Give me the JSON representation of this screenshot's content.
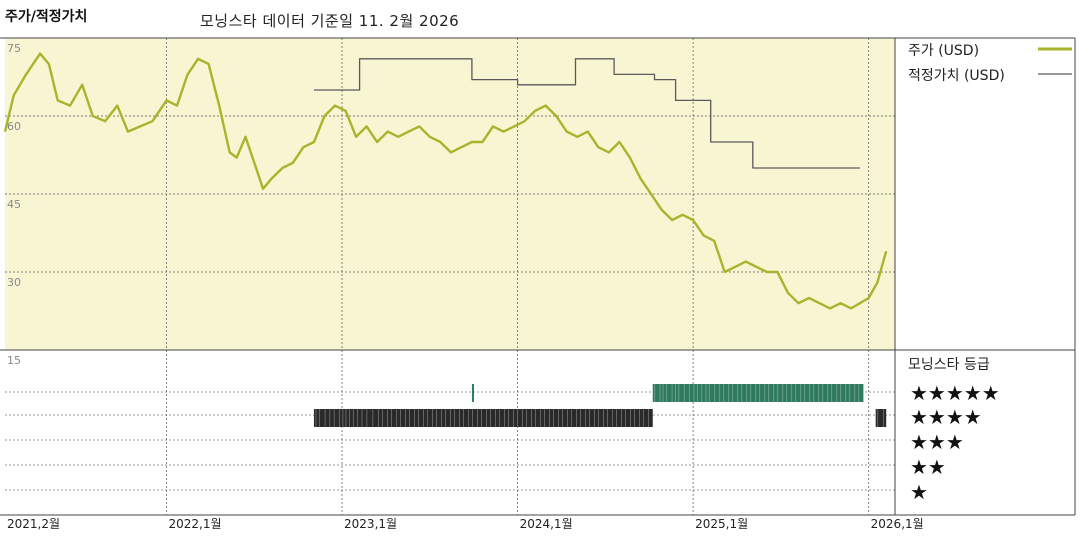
{
  "chart_data": {
    "type": "line",
    "title": "주가/적정가치",
    "subtitle": "모닝스타 데이터 기준일 11. 2월 2026",
    "y_ticks": [
      75,
      60,
      45,
      30,
      15
    ],
    "ylim": [
      15,
      75
    ],
    "x_ticks": [
      "2021,2월",
      "2022,1월",
      "2023,1월",
      "2024,1월",
      "2025,1월",
      "2026,1월"
    ],
    "x_tick_dates": [
      2021.08,
      2022.0,
      2023.0,
      2024.0,
      2025.0,
      2026.0
    ],
    "xlim": [
      2021.08,
      2026.15
    ],
    "legend": {
      "price_label": "주가 (USD)",
      "fair_label": "적정가치 (USD)",
      "rating_label": "모닝스타 등급"
    },
    "colors": {
      "price": "#a9b42c",
      "fair": "#5a5a5a",
      "plot_bg": "#f8f5d3",
      "rating_green": "#2f7a5c",
      "rating_dark": "#2a2a2a"
    },
    "series": [
      {
        "key": "price",
        "name": "주가 (USD)",
        "x": [
          2021.08,
          2021.13,
          2021.2,
          2021.28,
          2021.33,
          2021.38,
          2021.45,
          2021.52,
          2021.58,
          2021.65,
          2021.72,
          2021.78,
          2021.85,
          2021.92,
          2022.0,
          2022.06,
          2022.12,
          2022.18,
          2022.24,
          2022.3,
          2022.36,
          2022.4,
          2022.45,
          2022.5,
          2022.55,
          2022.6,
          2022.66,
          2022.72,
          2022.78,
          2022.84,
          2022.9,
          2022.96,
          2023.02,
          2023.08,
          2023.14,
          2023.2,
          2023.26,
          2023.32,
          2023.38,
          2023.44,
          2023.5,
          2023.56,
          2023.62,
          2023.68,
          2023.74,
          2023.8,
          2023.86,
          2023.92,
          2023.98,
          2024.04,
          2024.1,
          2024.16,
          2024.22,
          2024.28,
          2024.34,
          2024.4,
          2024.46,
          2024.52,
          2024.58,
          2024.64,
          2024.7,
          2024.76,
          2024.82,
          2024.88,
          2024.94,
          2025.0,
          2025.06,
          2025.12,
          2025.18,
          2025.24,
          2025.3,
          2025.36,
          2025.42,
          2025.48,
          2025.54,
          2025.6,
          2025.66,
          2025.72,
          2025.78,
          2025.84,
          2025.9,
          2025.95,
          2026.0,
          2026.05,
          2026.1
        ],
        "values": [
          57,
          64,
          68,
          72,
          70,
          63,
          62,
          66,
          60,
          59,
          62,
          57,
          58,
          59,
          63,
          62,
          68,
          71,
          70,
          62,
          53,
          52,
          56,
          51,
          46,
          48,
          50,
          51,
          54,
          55,
          60,
          62,
          61,
          56,
          58,
          55,
          57,
          56,
          57,
          58,
          56,
          55,
          53,
          54,
          55,
          55,
          58,
          57,
          58,
          59,
          61,
          62,
          60,
          57,
          56,
          57,
          54,
          53,
          55,
          52,
          48,
          45,
          42,
          40,
          41,
          40,
          37,
          36,
          30,
          31,
          32,
          31,
          30,
          30,
          26,
          24,
          25,
          24,
          23,
          24,
          23,
          24,
          25,
          28,
          34
        ]
      },
      {
        "key": "fair",
        "name": "적정가치 (USD)",
        "x": [
          2022.84,
          2023.1,
          2023.1,
          2023.74,
          2023.74,
          2024.0,
          2024.0,
          2024.33,
          2024.33,
          2024.55,
          2024.55,
          2024.78,
          2024.78,
          2024.9,
          2024.9,
          2025.1,
          2025.1,
          2025.34,
          2025.34,
          2025.95
        ],
        "values": [
          65,
          65,
          71,
          71,
          67,
          67,
          66,
          66,
          71,
          71,
          68,
          68,
          67,
          67,
          63,
          63,
          55,
          55,
          50,
          50
        ]
      }
    ],
    "rating_rows": [
      "★★★★★",
      "★★★★",
      "★★★",
      "★★",
      "★"
    ],
    "ratings": [
      {
        "level": 5,
        "from": 2023.74,
        "to": 2023.75,
        "color": "rating_green"
      },
      {
        "level": 5,
        "from": 2024.77,
        "to": 2025.97,
        "color": "rating_green"
      },
      {
        "level": 4,
        "from": 2022.84,
        "to": 2024.77,
        "color": "rating_dark"
      },
      {
        "level": 4,
        "from": 2026.04,
        "to": 2026.1,
        "color": "rating_dark"
      }
    ]
  }
}
